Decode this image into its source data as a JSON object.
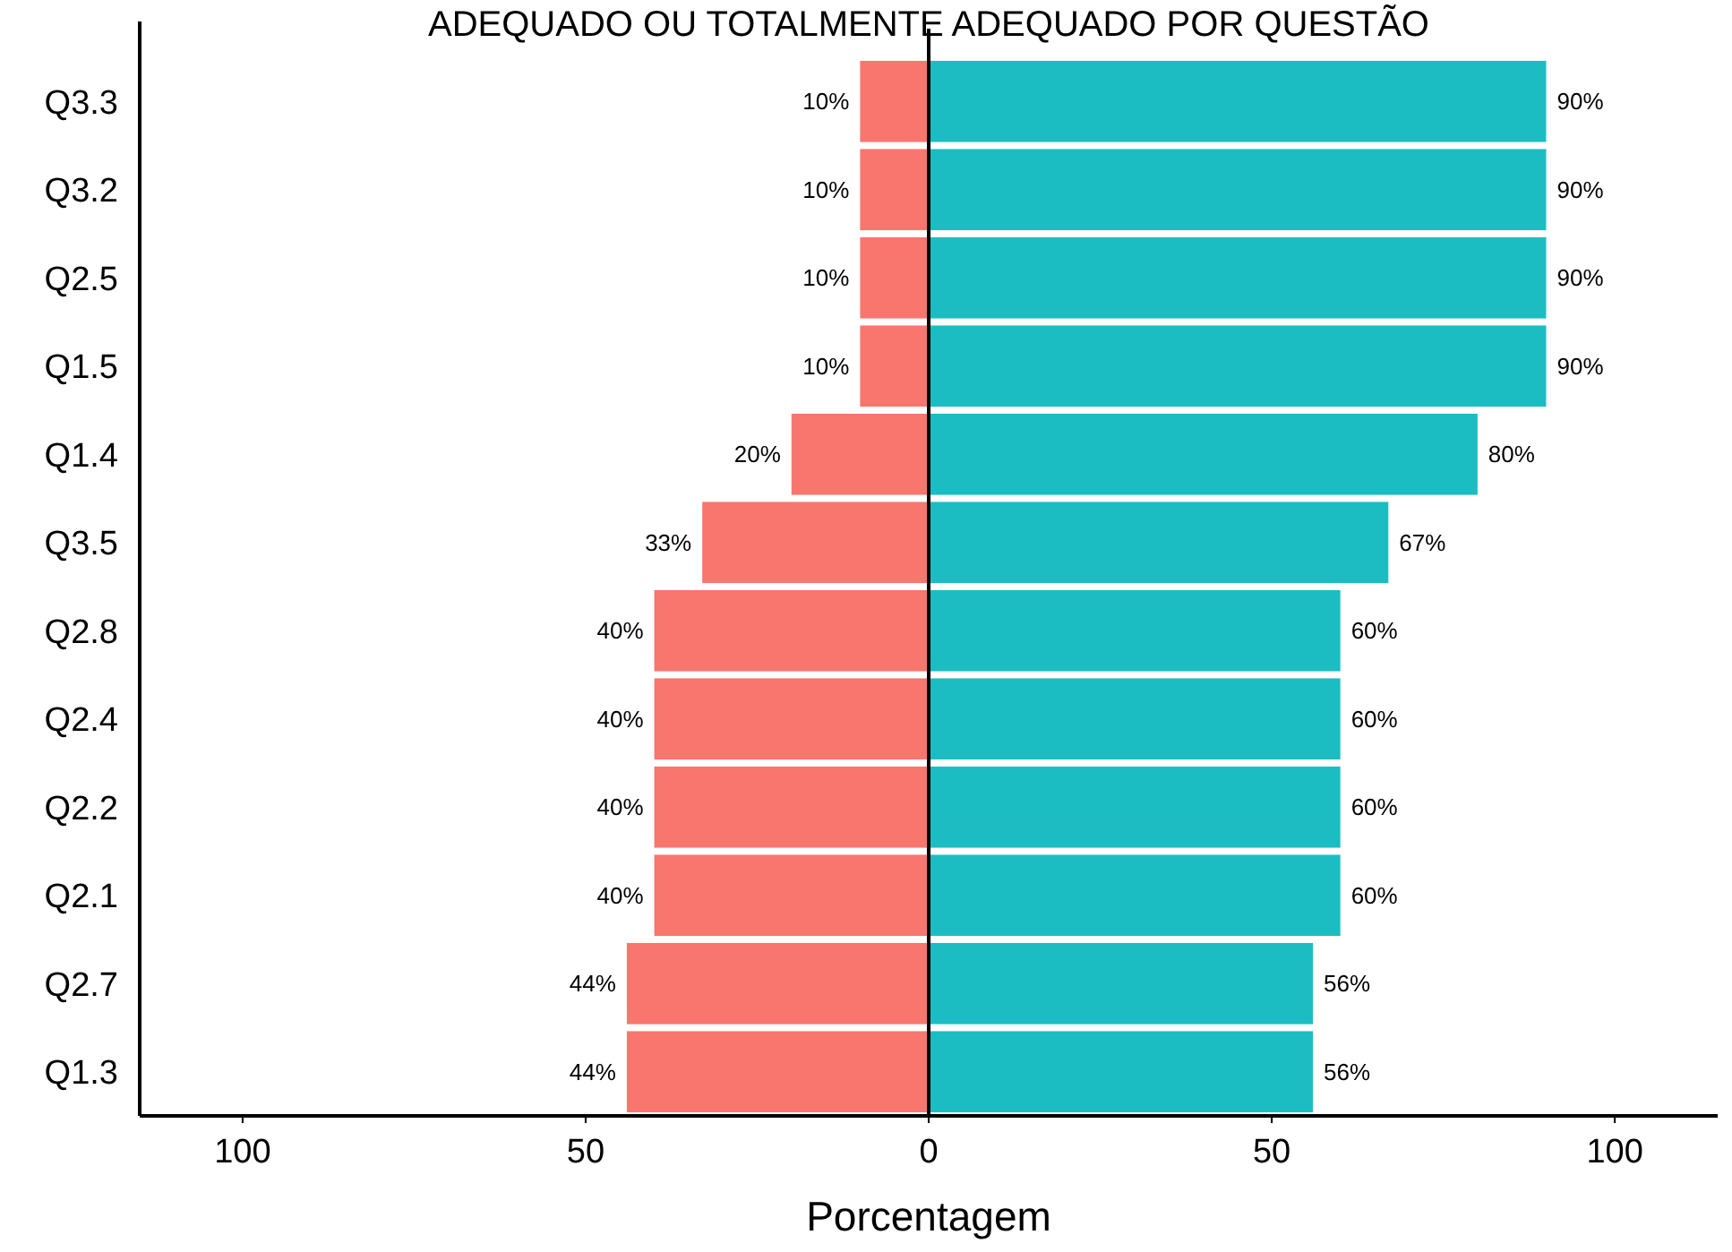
{
  "chart_data": {
    "type": "bar",
    "orientation": "horizontal",
    "title": "ADEQUADO OU TOTALMENTE ADEQUADO POR QUESTÃO",
    "xlabel": "Porcentagem",
    "categories": [
      "Q3.3",
      "Q3.2",
      "Q2.5",
      "Q1.5",
      "Q1.4",
      "Q3.5",
      "Q2.8",
      "Q2.4",
      "Q2.2",
      "Q2.1",
      "Q2.7",
      "Q1.3"
    ],
    "series": [
      {
        "color": "#f8766d",
        "values": [
          10,
          10,
          10,
          10,
          20,
          33,
          40,
          40,
          40,
          40,
          44,
          44
        ],
        "base": [
          -10,
          -10,
          -10,
          -10,
          -20,
          -33,
          -40,
          -40,
          -40,
          -40,
          -44,
          -44
        ],
        "value_labels": [
          "10%",
          "10%",
          "10%",
          "10%",
          "20%",
          "33%",
          "40%",
          "40%",
          "40%",
          "40%",
          "44%",
          "44%"
        ]
      },
      {
        "color": "#1cbdc2",
        "values": [
          90,
          90,
          90,
          90,
          80,
          67,
          60,
          60,
          60,
          60,
          56,
          56
        ],
        "value_labels": [
          "90%",
          "90%",
          "90%",
          "90%",
          "80%",
          "67%",
          "60%",
          "60%",
          "60%",
          "60%",
          "56%",
          "56%"
        ]
      }
    ],
    "xlim": [
      -115,
      115
    ],
    "xticks": [
      {
        "value": -100,
        "label": "100"
      },
      {
        "value": -50,
        "label": "50"
      },
      0,
      50,
      100
    ],
    "ref_lines": [
      {
        "axis": "x",
        "value": 0,
        "color": "#000000"
      }
    ],
    "grid": false
  }
}
